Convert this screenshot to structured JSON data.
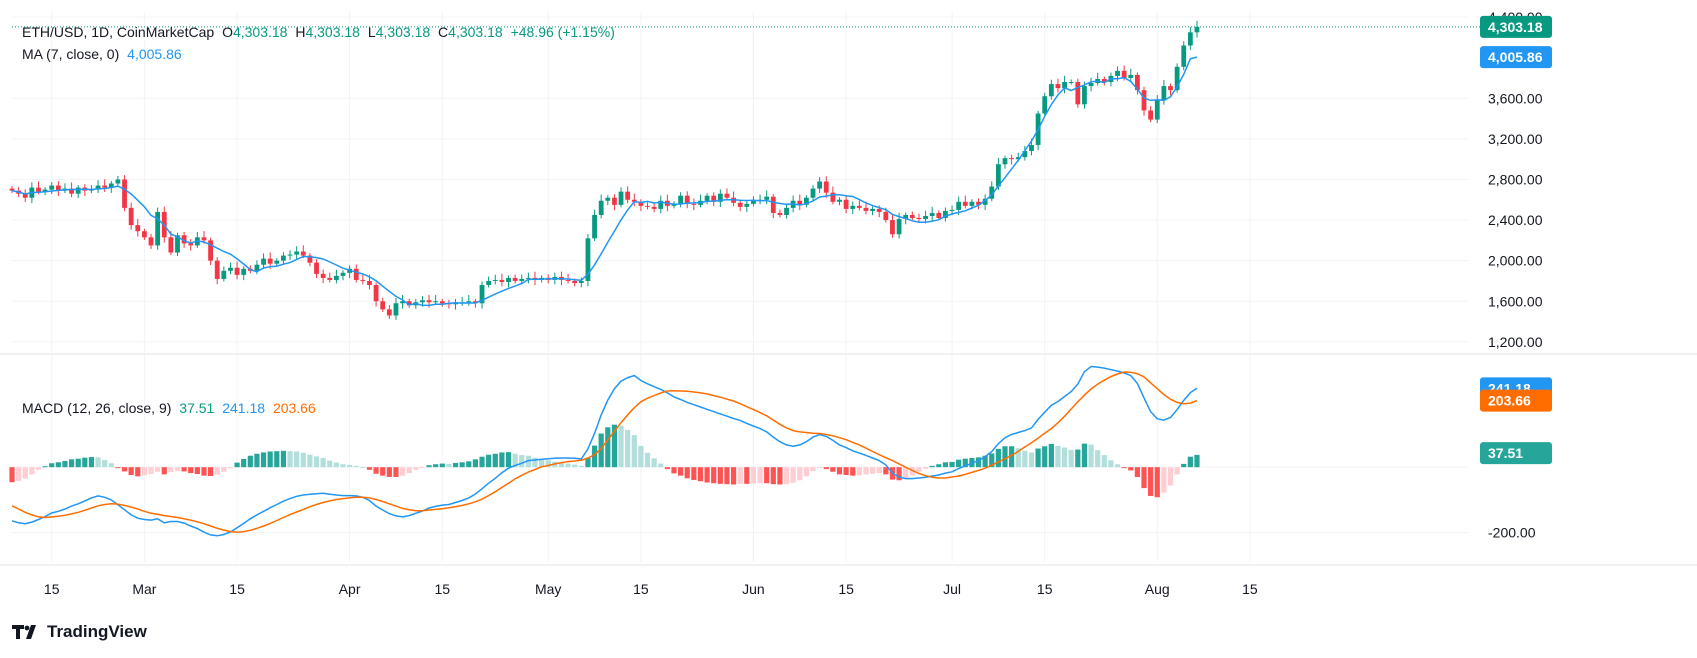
{
  "header": {
    "symbol": "ETH/USD, 1D, CoinMarketCap",
    "open_label": "O",
    "open": "4,303.18",
    "high_label": "H",
    "high": "4,303.18",
    "low_label": "L",
    "low": "4,303.18",
    "close_label": "C",
    "close": "4,303.18",
    "change": "+48.96 (+1.15%)"
  },
  "ma_legend": {
    "label": "MA (7, close, 0)",
    "value": "4,005.86"
  },
  "macd_legend": {
    "label": "MACD (12, 26, close, 9)",
    "hist": "37.51",
    "macd": "241.18",
    "signal": "203.66"
  },
  "brand": "TradingView",
  "colors": {
    "up": "#089981",
    "down": "#f23645",
    "ma": "#2196f3",
    "macd": "#2196f3",
    "signal": "#ff6d00",
    "hist_up_strong": "#26a69a",
    "hist_up_weak": "#b2dfdb",
    "hist_down_strong": "#ff5252",
    "hist_down_weak": "#ffcdd2",
    "grid": "#f0f3fa"
  },
  "chart_data": [
    {
      "type": "candlestick",
      "series_name": "ETH/USD",
      "y_ticks": [
        "4,400.00",
        "3,600.00",
        "3,200.00",
        "2,800.00",
        "2,400.00",
        "2,000.00",
        "1,600.00",
        "1,200.00"
      ],
      "y_tick_values": [
        4400,
        3600,
        3200,
        2800,
        2400,
        2000,
        1600,
        1200
      ],
      "x_ticks": [
        "15",
        "Mar",
        "15",
        "Apr",
        "15",
        "May",
        "15",
        "Jun",
        "15",
        "Jul",
        "15",
        "Aug",
        "15"
      ],
      "ylim": [
        1100,
        4450
      ],
      "last_price_tag": "4,303.18",
      "ma_tag": "4,005.86",
      "close": [
        2690,
        2660,
        2620,
        2720,
        2680,
        2700,
        2740,
        2690,
        2710,
        2660,
        2720,
        2690,
        2700,
        2740,
        2720,
        2760,
        2800,
        2520,
        2350,
        2290,
        2230,
        2150,
        2480,
        2230,
        2080,
        2250,
        2170,
        2150,
        2230,
        2200,
        2000,
        1820,
        1900,
        1930,
        1860,
        1920,
        1900,
        1960,
        2020,
        1970,
        2000,
        2050,
        2060,
        2090,
        2050,
        1980,
        1870,
        1830,
        1810,
        1850,
        1880,
        1920,
        1810,
        1800,
        1760,
        1600,
        1520,
        1460,
        1580,
        1600,
        1560,
        1590,
        1610,
        1590,
        1600,
        1580,
        1570,
        1580,
        1590,
        1600,
        1580,
        1760,
        1800,
        1810,
        1790,
        1830,
        1800,
        1820,
        1830,
        1810,
        1830,
        1810,
        1840,
        1810,
        1800,
        1780,
        1800,
        2220,
        2450,
        2590,
        2620,
        2550,
        2680,
        2600,
        2580,
        2540,
        2530,
        2510,
        2590,
        2540,
        2560,
        2640,
        2560,
        2550,
        2590,
        2640,
        2580,
        2660,
        2620,
        2570,
        2530,
        2560,
        2590,
        2600,
        2630,
        2470,
        2450,
        2520,
        2590,
        2550,
        2620,
        2710,
        2780,
        2670,
        2580,
        2600,
        2510,
        2540,
        2520,
        2490,
        2510,
        2480,
        2400,
        2260,
        2410,
        2450,
        2420,
        2410,
        2440,
        2470,
        2420,
        2490,
        2500,
        2580,
        2540,
        2580,
        2550,
        2610,
        2730,
        2950,
        3010,
        3000,
        3020,
        3080,
        3140,
        3450,
        3620,
        3740,
        3700,
        3760,
        3760,
        3540,
        3720,
        3750,
        3790,
        3760,
        3820,
        3870,
        3800,
        3830,
        3680,
        3480,
        3390,
        3580,
        3720,
        3680,
        3910,
        4120,
        4250,
        4303.18
      ],
      "ma": [
        2690,
        2675,
        2657,
        2672,
        2674,
        2678,
        2686,
        2692,
        2697,
        2701,
        2701,
        2703,
        2701,
        2708,
        2711,
        2721,
        2734,
        2704,
        2656,
        2595,
        2531,
        2447,
        2411,
        2349,
        2262,
        2234,
        2197,
        2173,
        2194,
        2184,
        2156,
        2123,
        2090,
        2064,
        2017,
        1967,
        1911,
        1891,
        1928,
        1940,
        1946,
        1965,
        1981,
        2012,
        2041,
        2039,
        2030,
        2016,
        1987,
        1957,
        1926,
        1905,
        1886,
        1869,
        1840,
        1802,
        1748,
        1698,
        1648,
        1612,
        1566,
        1576,
        1560,
        1559,
        1570,
        1570,
        1580,
        1584,
        1583,
        1584,
        1583,
        1609,
        1640,
        1670,
        1699,
        1727,
        1749,
        1774,
        1815,
        1817,
        1816,
        1821,
        1821,
        1821,
        1819,
        1811,
        1807,
        1866,
        1959,
        2068,
        2182,
        2290,
        2402,
        2500,
        2581,
        2573,
        2584,
        2568,
        2576,
        2567,
        2556,
        2558,
        2567,
        2569,
        2573,
        2585,
        2587,
        2596,
        2601,
        2600,
        2595,
        2593,
        2595,
        2590,
        2593,
        2575,
        2563,
        2556,
        2559,
        2548,
        2561,
        2589,
        2627,
        2636,
        2649,
        2650,
        2639,
        2632,
        2602,
        2568,
        2542,
        2522,
        2502,
        2456,
        2434,
        2415,
        2393,
        2379,
        2378,
        2389,
        2404,
        2438,
        2460,
        2475,
        2491,
        2519,
        2545,
        2593,
        2649,
        2737,
        2818,
        2904,
        2989,
        3085,
        3179,
        3290,
        3422,
        3538,
        3634,
        3702,
        3677,
        3707,
        3732,
        3762,
        3769,
        3754,
        3792,
        3793,
        3804,
        3765,
        3688,
        3603,
        3579,
        3586,
        3580,
        3614,
        3713,
        3835,
        3990,
        4005.86
      ]
    },
    {
      "type": "macd",
      "y_ticks": [
        "-200.00"
      ],
      "y_tick_values": [
        -200
      ],
      "ylim": [
        -290,
        340
      ],
      "macd_tag": "241.18",
      "signal_tag": "203.66",
      "hist_tag": "37.51",
      "macd": [
        -164,
        -170,
        -173,
        -168,
        -160,
        -151,
        -140,
        -135,
        -128,
        -119,
        -112,
        -103,
        -94,
        -88,
        -92,
        -100,
        -115,
        -130,
        -146,
        -156,
        -160,
        -162,
        -158,
        -170,
        -166,
        -166,
        -171,
        -180,
        -188,
        -199,
        -207,
        -210,
        -206,
        -198,
        -185,
        -172,
        -158,
        -146,
        -135,
        -124,
        -114,
        -104,
        -96,
        -89,
        -85,
        -83,
        -81,
        -80,
        -83,
        -85,
        -87,
        -87,
        -88,
        -92,
        -102,
        -119,
        -131,
        -142,
        -149,
        -152,
        -148,
        -141,
        -134,
        -125,
        -120,
        -116,
        -114,
        -108,
        -102,
        -94,
        -82,
        -66,
        -49,
        -34,
        -17,
        -3,
        5,
        12,
        20,
        22,
        24,
        26,
        27,
        28,
        28,
        27,
        25,
        56,
        104,
        160,
        205,
        240,
        263,
        274,
        280,
        265,
        255,
        246,
        238,
        227,
        215,
        207,
        198,
        191,
        184,
        177,
        170,
        163,
        156,
        149,
        143,
        134,
        126,
        118,
        108,
        92,
        78,
        68,
        64,
        68,
        78,
        92,
        100,
        94,
        82,
        68,
        60,
        50,
        43,
        36,
        28,
        20,
        7,
        -18,
        -30,
        -35,
        -35,
        -33,
        -31,
        -27,
        -24,
        -18,
        -14,
        -4,
        4,
        12,
        20,
        32,
        48,
        72,
        90,
        100,
        106,
        112,
        120,
        146,
        168,
        189,
        201,
        216,
        231,
        254,
        292,
        308,
        306,
        303,
        298,
        294,
        288,
        280,
        256,
        212,
        170,
        148,
        144,
        152,
        176,
        204,
        228,
        241.18
      ],
      "signal": [
        -118,
        -128,
        -138,
        -146,
        -152,
        -154,
        -152,
        -150,
        -147,
        -143,
        -138,
        -132,
        -125,
        -118,
        -114,
        -112,
        -113,
        -117,
        -122,
        -128,
        -135,
        -141,
        -144,
        -148,
        -151,
        -154,
        -158,
        -162,
        -167,
        -173,
        -180,
        -187,
        -192,
        -197,
        -199,
        -197,
        -193,
        -187,
        -180,
        -172,
        -163,
        -154,
        -145,
        -137,
        -129,
        -121,
        -114,
        -108,
        -103,
        -99,
        -96,
        -94,
        -92,
        -92,
        -94,
        -99,
        -105,
        -112,
        -119,
        -126,
        -130,
        -133,
        -133,
        -131,
        -129,
        -127,
        -124,
        -121,
        -117,
        -112,
        -106,
        -98,
        -87,
        -75,
        -62,
        -49,
        -36,
        -25,
        -15,
        -7,
        1,
        5,
        10,
        14,
        17,
        19,
        21,
        28,
        38,
        57,
        83,
        110,
        136,
        160,
        182,
        200,
        211,
        219,
        227,
        233,
        234,
        233,
        232,
        230,
        227,
        224,
        219,
        214,
        208,
        202,
        194,
        185,
        176,
        167,
        157,
        144,
        131,
        120,
        112,
        108,
        106,
        104,
        103,
        100,
        96,
        90,
        84,
        76,
        68,
        58,
        48,
        38,
        29,
        20,
        10,
        0,
        -10,
        -19,
        -26,
        -31,
        -33,
        -33,
        -30,
        -27,
        -22,
        -16,
        -10,
        -3,
        6,
        16,
        26,
        36,
        48,
        62,
        75,
        89,
        104,
        118,
        136,
        156,
        178,
        200,
        220,
        239,
        254,
        266,
        277,
        285,
        291,
        290,
        286,
        276,
        258,
        240,
        222,
        208,
        198,
        194,
        196,
        203.66
      ]
    }
  ]
}
